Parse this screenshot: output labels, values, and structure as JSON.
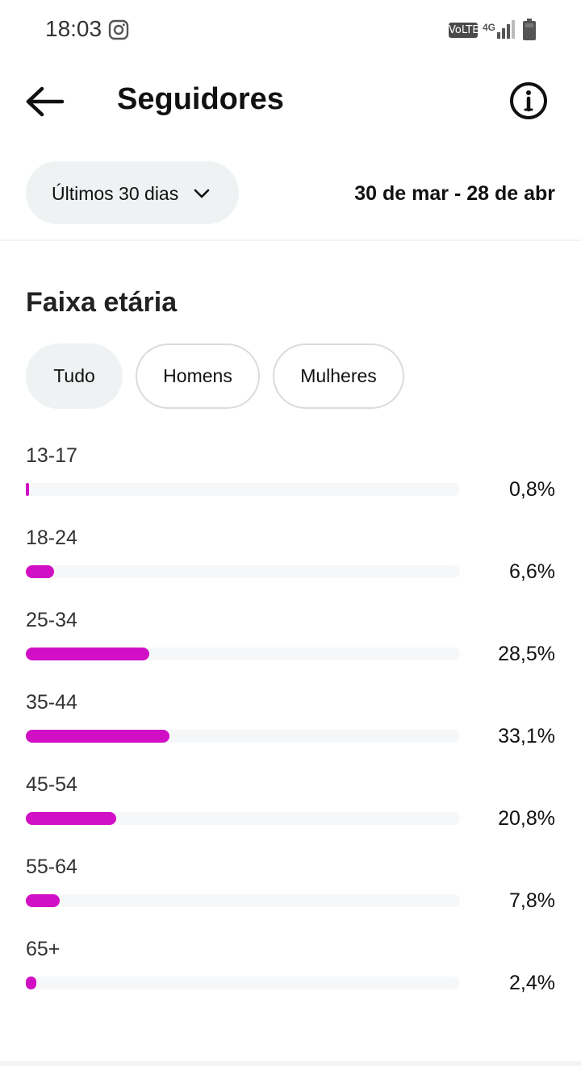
{
  "status_bar": {
    "time": "18:03",
    "volte": "VoLTE",
    "network": "4G",
    "app_icon": "instagram-icon",
    "signal_icon": "signal-icon",
    "battery_icon": "battery-icon"
  },
  "header": {
    "back_icon": "arrow-left-icon",
    "title": "Seguidores",
    "info_icon": "info-icon"
  },
  "filters": {
    "period_label": "Últimos 30 dias",
    "period_icon": "chevron-down-icon",
    "date_range": "30 de mar - 28 de abr"
  },
  "section": {
    "title": "Faixa etária",
    "chips": [
      {
        "label": "Tudo",
        "selected": true
      },
      {
        "label": "Homens",
        "selected": false
      },
      {
        "label": "Mulheres",
        "selected": false
      }
    ]
  },
  "colors": {
    "bar_fill": "#d10fc4",
    "bar_track": "#f5f7f8",
    "chip_selected_bg": "#eff2f3"
  },
  "age_ranges": [
    {
      "range": "13-17",
      "value_label": "0,8%",
      "percent": 0.8
    },
    {
      "range": "18-24",
      "value_label": "6,6%",
      "percent": 6.6
    },
    {
      "range": "25-34",
      "value_label": "28,5%",
      "percent": 28.5
    },
    {
      "range": "35-44",
      "value_label": "33,1%",
      "percent": 33.1
    },
    {
      "range": "45-54",
      "value_label": "20,8%",
      "percent": 20.8
    },
    {
      "range": "55-64",
      "value_label": "7,8%",
      "percent": 7.8
    },
    {
      "range": "65+",
      "value_label": "2,4%",
      "percent": 2.4
    }
  ]
}
